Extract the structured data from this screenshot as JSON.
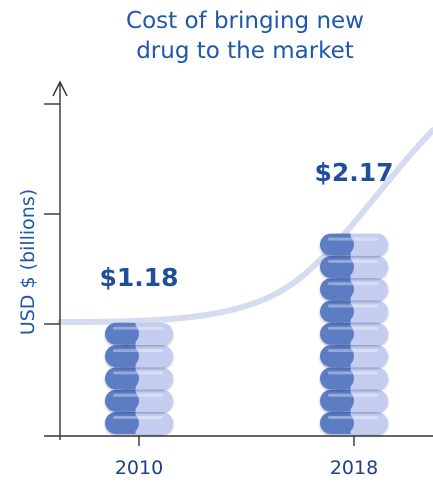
{
  "chart_data": {
    "type": "bar",
    "title": "Cost of bringing new drug to the market",
    "title_lines": [
      "Cost of bringing new",
      "drug to the market"
    ],
    "xlabel": "",
    "ylabel": "USD $ (billions)",
    "categories": [
      "2010",
      "2018"
    ],
    "values": [
      1.18,
      2.17
    ],
    "value_labels": [
      "$1.18",
      "$2.17"
    ],
    "ylim": [
      0,
      3
    ],
    "grid": false,
    "legend": "none",
    "colors": {
      "pill_dark": "#5b7dc4",
      "pill_light": "#c4cdf0",
      "trend_curve": "#d6dcf0",
      "axis": "#333333",
      "title_text": "#1f58a8",
      "label_text": "#1f4f9a"
    }
  }
}
